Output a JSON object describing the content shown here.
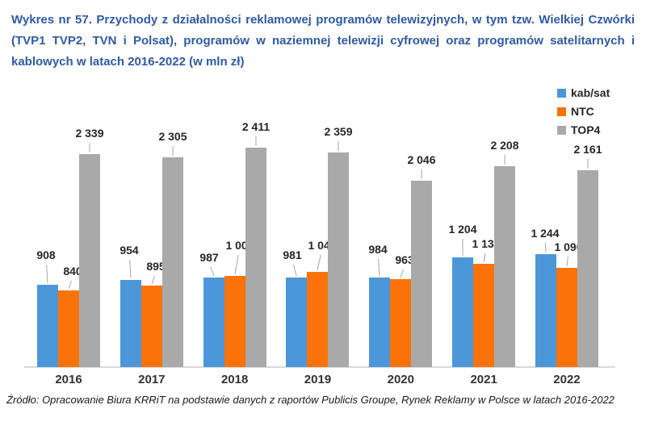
{
  "chart_data": {
    "type": "bar",
    "title": "Wykres nr 57. Przychody z działalności reklamowej programów telewizyjnych, w tym tzw. Wielkiej Czwórki (TVP1 TVP2, TVN i Polsat), programów w naziemnej telewizji cyfrowej oraz programów satelitarnych i kablowych w latach 2016-2022 (w mln zł)",
    "source": "Źródło: Opracowanie Biura KRRiT na podstawie danych z raportów Publicis Groupe, Rynek Reklamy w Polsce w latach 2016-2022",
    "categories": [
      "2016",
      "2017",
      "2018",
      "2019",
      "2020",
      "2021",
      "2022"
    ],
    "series": [
      {
        "name": "kab/sat",
        "color": "#4C97D9",
        "values": [
          908,
          954,
          987,
          981,
          984,
          1204,
          1244
        ],
        "label_gaps": [
          28,
          28,
          16,
          19,
          26,
          26,
          17
        ],
        "label_dx": [
          -2,
          -2,
          -6,
          -5,
          -2,
          0,
          -1
        ]
      },
      {
        "name": "NTC",
        "color": "#F9730A",
        "values": [
          840,
          895,
          1000,
          1042,
          963,
          1134,
          1090
        ],
        "label_gaps": [
          15,
          15,
          29,
          24,
          15,
          16,
          17
        ],
        "label_dx": [
          5,
          5,
          6,
          6,
          5,
          3,
          2
        ]
      },
      {
        "name": "TOP4",
        "color": "#A9A9A9",
        "values": [
          2339,
          2305,
          2411,
          2359,
          2046,
          2208,
          2161
        ],
        "label_gaps": [
          17,
          17,
          17,
          17,
          17,
          17,
          17
        ],
        "label_dx": [
          0,
          0,
          0,
          0,
          0,
          0,
          0
        ]
      }
    ],
    "ylim": [
      0,
      2500
    ],
    "grid": false,
    "legend_position": "top-right",
    "data_labels": true,
    "leader_line_color": "#A6A6A6",
    "axis_line_color": "#D9D9D9",
    "title_color": "#2F5BA5"
  }
}
